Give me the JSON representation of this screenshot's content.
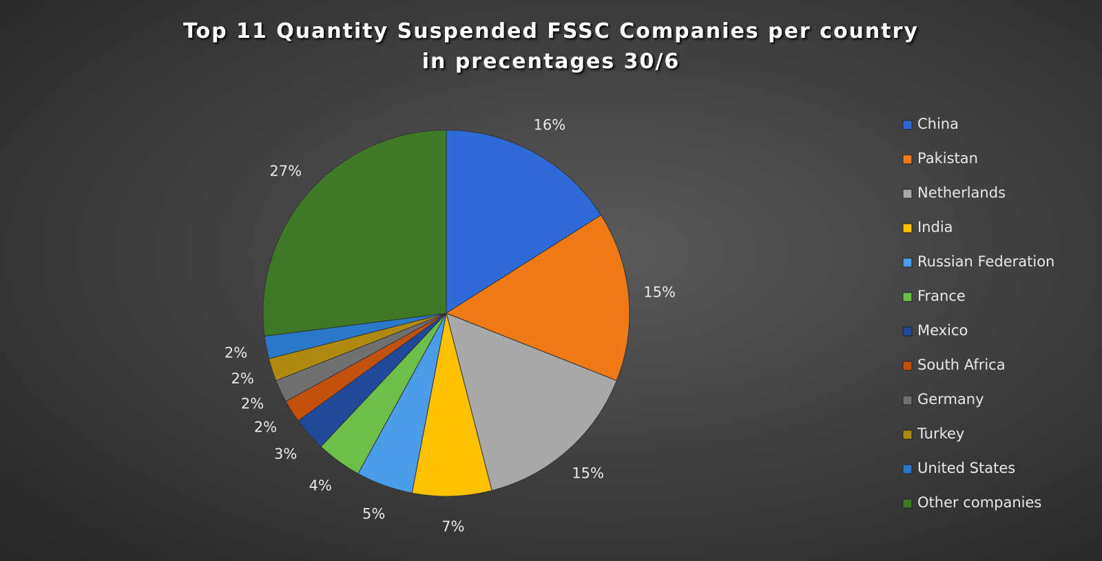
{
  "chart_data": {
    "type": "pie",
    "title": "Top 11 Quantity Suspended FSSC Companies per country in precentages 30/6",
    "categories": [
      "China",
      "Pakistan",
      "Netherlands",
      "India",
      "Russian Federation",
      "France",
      "Mexico",
      "South Africa",
      "Germany",
      "Turkey",
      "United States",
      "Other companies"
    ],
    "values": [
      16,
      15,
      15,
      7,
      5,
      4,
      3,
      2,
      2,
      2,
      2,
      27
    ],
    "value_labels": [
      "16%",
      "15%",
      "15%",
      "7%",
      "5%",
      "4%",
      "3%",
      "2%",
      "2%",
      "2%",
      "2%",
      "27%"
    ],
    "colors": [
      "#2f6bd8",
      "#f07a16",
      "#a8a8a8",
      "#ffc000",
      "#4a9be8",
      "#6cc04a",
      "#1f4a9a",
      "#c4500e",
      "#707070",
      "#b08a10",
      "#2a78c8",
      "#3f7a26"
    ],
    "legend": "right"
  }
}
